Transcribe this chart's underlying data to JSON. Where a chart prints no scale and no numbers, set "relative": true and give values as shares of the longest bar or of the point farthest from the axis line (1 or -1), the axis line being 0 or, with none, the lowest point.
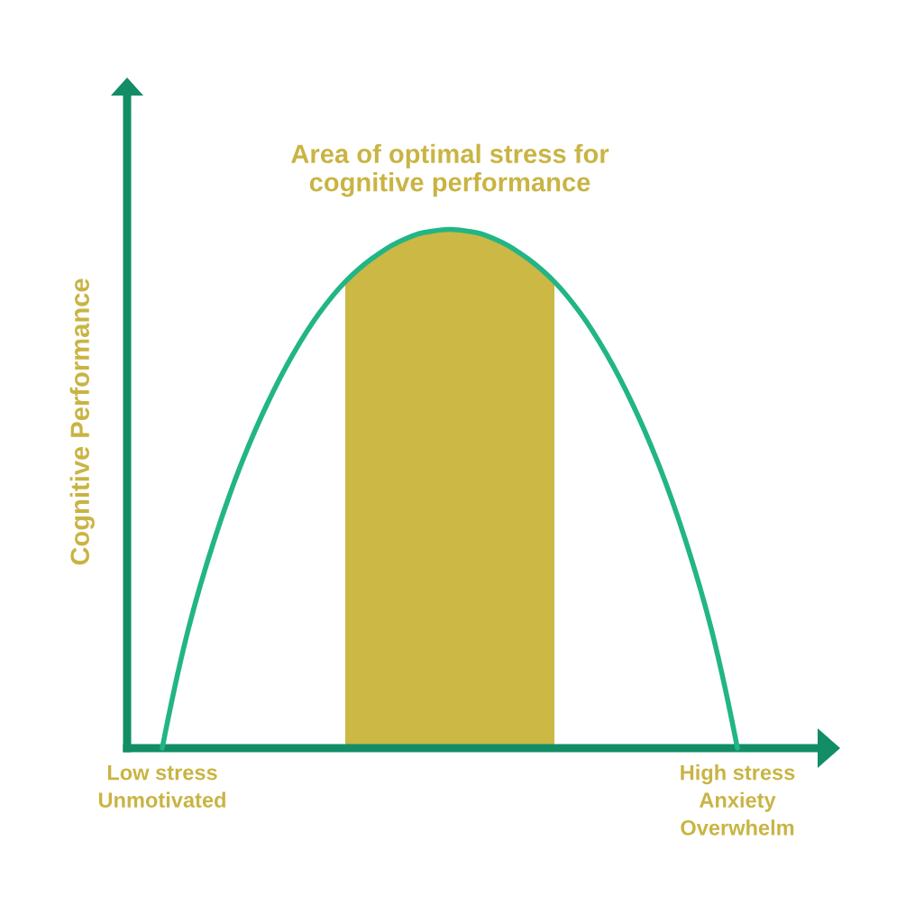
{
  "chart_data": {
    "type": "line",
    "relative": true,
    "ylabel": "Cognitive Performance",
    "annotations": [
      "Area of optimal stress for\ncognitive performance"
    ],
    "categories": [
      "Low stress\nUnmotivated",
      null,
      null,
      null,
      null,
      null,
      null,
      null,
      null,
      null,
      null,
      null,
      null,
      null,
      null,
      null,
      null,
      null,
      null,
      null,
      null,
      null,
      "High stress\nAnxiety\nOverwhelm"
    ],
    "series": [
      {
        "type": "area",
        "color": "#cbb845",
        "values": [
          null,
          null,
          null,
          null,
          null,
          null,
          null,
          0.899,
          0.943,
          0.975,
          0.994,
          1,
          0.994,
          0.975,
          0.943,
          0.899,
          null,
          null,
          null,
          null,
          null,
          null,
          null
        ]
      },
      {
        "color": "#22b585",
        "values": [
          0,
          0.23,
          0.403,
          0.545,
          0.662,
          0.759,
          0.838,
          0.899,
          0.943,
          0.975,
          0.994,
          1,
          0.994,
          0.975,
          0.943,
          0.899,
          0.838,
          0.759,
          0.662,
          0.545,
          0.403,
          0.23,
          0
        ]
      }
    ]
  }
}
